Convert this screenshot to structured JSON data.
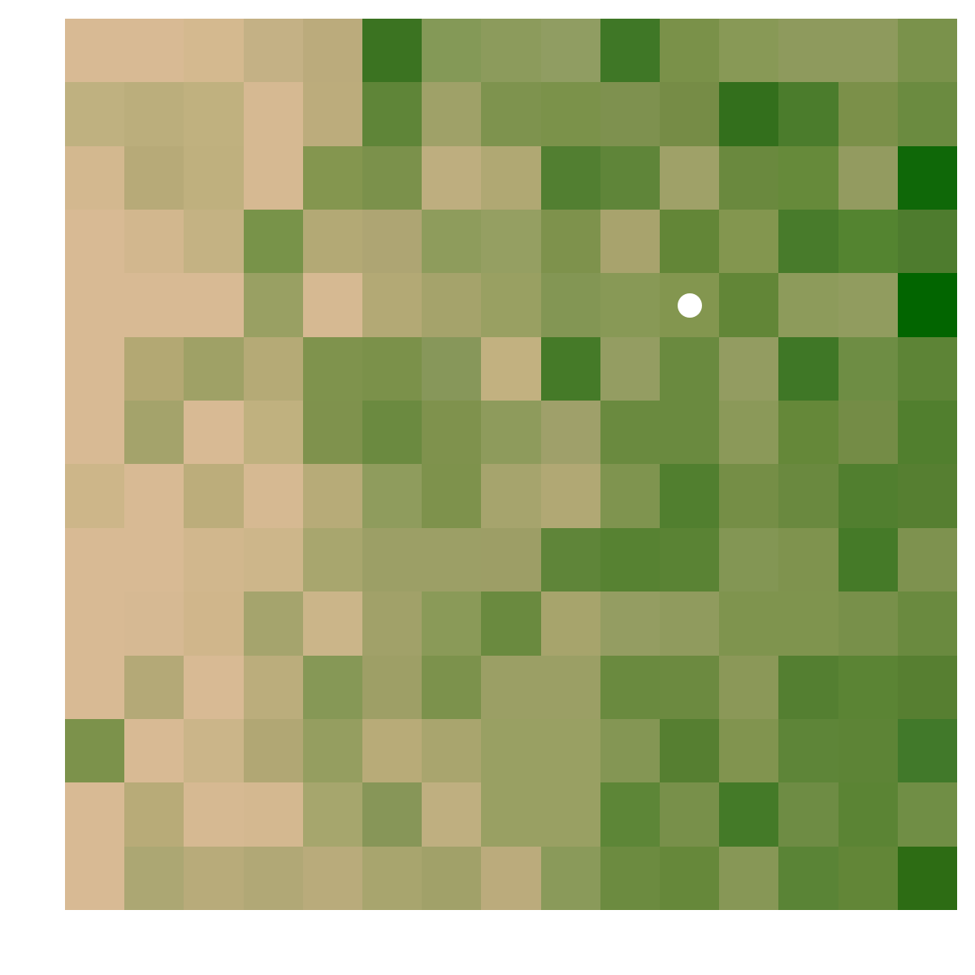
{
  "grid": {
    "rows": 14,
    "cols": 15,
    "cells": [
      [
        "#d8ba94",
        "#d8ba94",
        "#d4b98f",
        "#c4b185",
        "#bbab7c",
        "#3b7321",
        "#849957",
        "#8c9b5c",
        "#909d62",
        "#3f7726",
        "#7a9149",
        "#889956",
        "#8e9a5d",
        "#8e9a5d",
        "#7a924b"
      ],
      [
        "#bfb180",
        "#bbae7c",
        "#c0b17f",
        "#d6b992",
        "#bcac7c",
        "#5f8538",
        "#9fa168",
        "#7e934e",
        "#7b924a",
        "#7e914f",
        "#768c46",
        "#336f1c",
        "#4b7c2c",
        "#7b9049",
        "#6b8b40"
      ],
      [
        "#d3b88f",
        "#b7aa78",
        "#bfb07e",
        "#d6b992",
        "#84964f",
        "#7b914b",
        "#beae7f",
        "#b0a873",
        "#527f31",
        "#5f8539",
        "#9fa168",
        "#6a893e",
        "#668a3a",
        "#939b60",
        "#0f6808"
      ],
      [
        "#d8ba94",
        "#d2b78e",
        "#c4b283",
        "#789349",
        "#b3a975",
        "#aea573",
        "#8e9c5c",
        "#959f62",
        "#7e924c",
        "#a8a36d",
        "#638637",
        "#83964f",
        "#487b2b",
        "#548430",
        "#4e7c2e"
      ],
      [
        "#d8ba94",
        "#d8ba94",
        "#d8ba94",
        "#99a063",
        "#d6b992",
        "#b3a975",
        "#a5a36b",
        "#99a062",
        "#839654",
        "#889956",
        "#83964f",
        "#628637",
        "#8d9b5b",
        "#919c5f",
        "#026500"
      ],
      [
        "#d8ba94",
        "#b3a873",
        "#9fa166",
        "#b5aa76",
        "#7f934d",
        "#7b914a",
        "#87975a",
        "#c2b180",
        "#457a28",
        "#949d62",
        "#6a8a3f",
        "#939c61",
        "#3f7726",
        "#6e8d44",
        "#5d8436"
      ],
      [
        "#d8ba94",
        "#a4a36b",
        "#d8ba94",
        "#c0b17f",
        "#7f924d",
        "#6b8a40",
        "#7f924d",
        "#8e9b5c",
        "#9fa06a",
        "#6a8a3f",
        "#6a8a3f",
        "#8b9959",
        "#658839",
        "#748c46",
        "#517f2e"
      ],
      [
        "#cdb689",
        "#d8ba94",
        "#bcad7b",
        "#d6b992",
        "#b7ab78",
        "#8f9c5d",
        "#7e924c",
        "#a6a46d",
        "#b1a874",
        "#7f944f",
        "#517f2f",
        "#758e46",
        "#6a893f",
        "#517f2f",
        "#567f31"
      ],
      [
        "#d8ba94",
        "#d8ba94",
        "#d1b78d",
        "#cdb68a",
        "#a8a66e",
        "#9c9f66",
        "#9c9f66",
        "#9d9e66",
        "#5f8539",
        "#578232",
        "#5a8334",
        "#839654",
        "#7f934e",
        "#457a28",
        "#7e924f"
      ],
      [
        "#d8ba94",
        "#d6b993",
        "#d0b68b",
        "#a5a46d",
        "#cbb589",
        "#a1a169",
        "#8a9a58",
        "#6a8a3f",
        "#a7a46c",
        "#949d62",
        "#909b5e",
        "#7f944e",
        "#7f944e",
        "#78904a",
        "#6a8a3f"
      ],
      [
        "#d8ba94",
        "#b4a977",
        "#d8ba94",
        "#bbad7c",
        "#869856",
        "#9e9f66",
        "#7c924c",
        "#9b9f65",
        "#9b9f65",
        "#6a8a3f",
        "#6c8a40",
        "#8b9858",
        "#547f31",
        "#5b8434",
        "#577f31"
      ],
      [
        "#7c924b",
        "#d8ba94",
        "#cbb589",
        "#b1a774",
        "#959e60",
        "#b8ab78",
        "#a9a56e",
        "#99a063",
        "#99a063",
        "#849654",
        "#567f31",
        "#81944f",
        "#5e8538",
        "#5d8436",
        "#41792a"
      ],
      [
        "#d8ba94",
        "#b8ab78",
        "#d6b992",
        "#d4b890",
        "#a6a66d",
        "#879658",
        "#bfaf80",
        "#99a063",
        "#99a063",
        "#5d8637",
        "#78904a",
        "#447a28",
        "#6e8c44",
        "#5b8434",
        "#708e45"
      ],
      [
        "#d8ba94",
        "#aca773",
        "#b8ab7a",
        "#b1a876",
        "#b9ab7b",
        "#a8a56e",
        "#a1a169",
        "#bbab7c",
        "#8a9a5a",
        "#6c8b40",
        "#66883a",
        "#879756",
        "#5a8436",
        "#628637",
        "#2d6c14"
      ]
    ]
  },
  "agent": {
    "row": 4,
    "col": 10,
    "color": "#ffffff"
  }
}
